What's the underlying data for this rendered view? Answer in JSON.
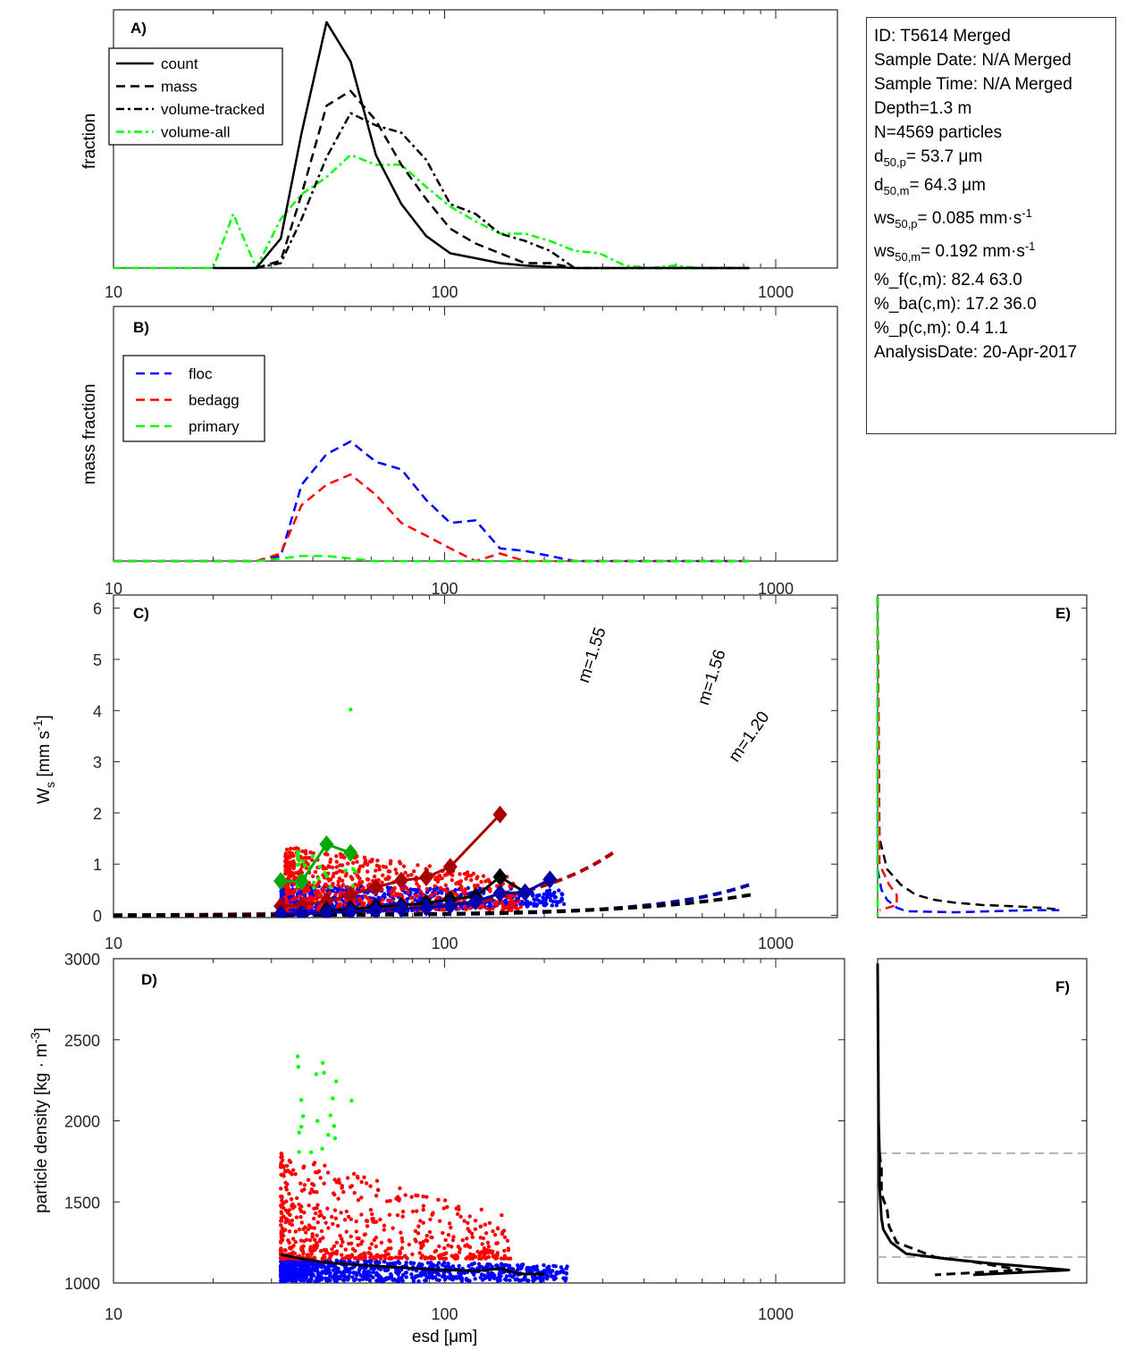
{
  "info_box": {
    "id": "ID: T5614 Merged",
    "sample_date": "Sample Date: N/A Merged",
    "sample_time": "Sample Time: N/A Merged",
    "depth": "Depth=1.3 m",
    "n": "N=4569 particles",
    "d50p_base": "d",
    "d50p_sub": "50,p",
    "d50p_val": "=  53.7 μm",
    "d50m_base": "d",
    "d50m_sub": "50,m",
    "d50m_val": "=  64.3 μm",
    "ws50p_base": "ws",
    "ws50p_sub": "50,p",
    "ws50p_val": "= 0.085 mm·s",
    "ws50p_sup": "-1",
    "ws50m_base": "ws",
    "ws50m_sub": "50,m",
    "ws50m_val": "= 0.192 mm·s",
    "ws50m_sup": "-1",
    "pct_f": "%_f(c,m): 82.4 63.0",
    "pct_ba": "%_ba(c,m): 17.2 36.0",
    "pct_p": "%_p(c,m): 0.4 1.1",
    "analysis_date": "AnalysisDate: 20-Apr-2017"
  },
  "colors": {
    "black": "#000000",
    "green": "#00ff00",
    "blue": "#0000ff",
    "red": "#ff0000",
    "dark_red": "#aa0000",
    "dark_blue": "#0000aa",
    "dark_green": "#00aa00",
    "gray": "#a0a0a0"
  },
  "chart_data": [
    {
      "id": "A",
      "type": "line",
      "panel_label": "A)",
      "xlabel": "",
      "ylabel": "fraction",
      "xscale": "log",
      "xlim": [
        10,
        1500
      ],
      "ylim": [
        0,
        1.05
      ],
      "xticks": [
        10,
        100,
        1000
      ],
      "xtick_labels": [
        "10",
        "100",
        "1000"
      ],
      "legend_position": "top-left",
      "series": [
        {
          "name": "count",
          "style": "solid",
          "color": "#000000",
          "x": [
            20,
            27,
            32,
            37,
            44,
            52,
            62,
            74,
            88,
            104,
            124,
            147,
            175,
            208,
            247,
            294,
            350,
            416,
            494,
            588,
            700,
            832
          ],
          "y": [
            0,
            0,
            0.12,
            0.55,
            1.0,
            0.84,
            0.46,
            0.26,
            0.13,
            0.06,
            0.04,
            0.02,
            0.01,
            0.005,
            0,
            0,
            0,
            0,
            0,
            0,
            0,
            0
          ]
        },
        {
          "name": "mass",
          "style": "dash",
          "color": "#000000",
          "x": [
            27,
            32,
            37,
            44,
            52,
            62,
            74,
            88,
            104,
            124,
            147,
            175,
            208,
            247
          ],
          "y": [
            0,
            0.03,
            0.3,
            0.66,
            0.72,
            0.6,
            0.42,
            0.28,
            0.16,
            0.1,
            0.06,
            0.02,
            0.02,
            0
          ]
        },
        {
          "name": "volume-tracked",
          "style": "dashdot",
          "color": "#000000",
          "x": [
            27,
            32,
            37,
            44,
            52,
            62,
            74,
            88,
            104,
            124,
            147,
            175,
            208,
            247,
            294,
            350,
            416,
            494,
            588,
            700,
            832
          ],
          "y": [
            0,
            0.02,
            0.2,
            0.45,
            0.63,
            0.58,
            0.55,
            0.44,
            0.26,
            0.22,
            0.14,
            0.11,
            0.07,
            0,
            0,
            0,
            0,
            0,
            0,
            0,
            0
          ]
        },
        {
          "name": "volume-all",
          "style": "dashdot",
          "color": "#00ff00",
          "x": [
            10,
            20,
            23,
            27,
            32,
            37,
            44,
            52,
            62,
            74,
            88,
            104,
            124,
            147,
            175,
            208,
            247,
            294,
            350,
            416,
            494,
            588,
            700,
            832
          ],
          "y": [
            0,
            0,
            0.22,
            0,
            0.2,
            0.3,
            0.37,
            0.46,
            0.42,
            0.42,
            0.33,
            0.25,
            0.19,
            0.14,
            0.14,
            0.11,
            0.07,
            0.06,
            0.01,
            0,
            0.01,
            0,
            0,
            0
          ]
        }
      ]
    },
    {
      "id": "B",
      "type": "line",
      "panel_label": "B)",
      "xlabel": "",
      "ylabel": "mass fraction",
      "xscale": "log",
      "xlim": [
        10,
        1500
      ],
      "ylim": [
        0,
        1.0
      ],
      "xticks": [
        10,
        100,
        1000
      ],
      "xtick_labels": [
        "10",
        "100",
        "1000"
      ],
      "legend_position": "top-left",
      "series": [
        {
          "name": "floc",
          "style": "dash",
          "color": "#0000ff",
          "x": [
            10,
            27,
            32,
            37,
            44,
            52,
            62,
            74,
            88,
            104,
            124,
            147,
            175,
            208,
            247,
            294,
            350,
            416,
            494,
            588,
            700,
            832
          ],
          "y": [
            0,
            0,
            0.02,
            0.3,
            0.42,
            0.47,
            0.39,
            0.36,
            0.24,
            0.15,
            0.16,
            0.05,
            0.04,
            0.02,
            0,
            0,
            0,
            0,
            0,
            0,
            0,
            0
          ]
        },
        {
          "name": "bedagg",
          "style": "dash",
          "color": "#ff0000",
          "x": [
            10,
            27,
            32,
            37,
            44,
            52,
            62,
            74,
            88,
            104,
            124,
            147,
            175,
            208,
            247,
            294,
            350,
            416,
            494,
            588,
            700,
            832
          ],
          "y": [
            0,
            0,
            0.03,
            0.22,
            0.3,
            0.34,
            0.26,
            0.15,
            0.1,
            0.05,
            0,
            0.03,
            0,
            0,
            0,
            0,
            0,
            0,
            0,
            0,
            0,
            0
          ]
        },
        {
          "name": "primary",
          "style": "dash",
          "color": "#00ff00",
          "x": [
            10,
            27,
            32,
            37,
            44,
            52,
            62,
            74,
            88,
            104,
            124,
            147,
            175,
            208,
            247,
            294,
            350,
            416,
            494,
            588,
            700,
            832
          ],
          "y": [
            0,
            0,
            0.01,
            0.02,
            0.02,
            0.01,
            0,
            0,
            0,
            0,
            0,
            0,
            0,
            0,
            0,
            0,
            0,
            0,
            0,
            0,
            0,
            0
          ]
        }
      ]
    },
    {
      "id": "C",
      "type": "scatter",
      "panel_label": "C)",
      "xlabel": "",
      "ylabel_base": "W",
      "ylabel_sub": "s",
      "ylabel_unit": " [mm s",
      "ylabel_sup": "-1",
      "ylabel_end": "]",
      "xscale": "log",
      "xlim": [
        10,
        1500
      ],
      "ylim": [
        -0.05,
        6.25
      ],
      "xticks": [
        10,
        100,
        1000
      ],
      "xtick_labels": [
        "10",
        "100",
        "1000"
      ],
      "yticks": [
        0,
        1,
        2,
        3,
        4,
        5,
        6
      ],
      "ytick_labels": [
        "0",
        "1",
        "2",
        "3",
        "4",
        "5",
        "6"
      ],
      "fits": [
        {
          "name": "bedagg-fit",
          "label": "m=1.55",
          "color": "#aa0000",
          "m": 1.55,
          "a": 0.000158,
          "x_end": 330
        },
        {
          "name": "floc-fit",
          "label": "m=1.56",
          "color": "#0000aa",
          "m": 1.56,
          "a": 1.66e-05,
          "x_end": 870
        },
        {
          "name": "all-fit",
          "label": "m=1.20",
          "color": "#000000",
          "m": 1.2,
          "a": 0.000124,
          "x_end": 880
        }
      ],
      "binned_means": [
        {
          "name": "primary",
          "color": "#00aa00",
          "x": [
            32,
            37,
            44,
            52
          ],
          "y": [
            0.67,
            0.66,
            1.39,
            1.22
          ]
        },
        {
          "name": "bedagg",
          "color": "#aa0000",
          "x": [
            32,
            37,
            44,
            52,
            62,
            74,
            88,
            104,
            147
          ],
          "y": [
            0.18,
            0.2,
            0.28,
            0.4,
            0.55,
            0.68,
            0.74,
            0.95,
            1.97
          ]
        },
        {
          "name": "all",
          "color": "#000000",
          "x": [
            44,
            52,
            62,
            74,
            88,
            104,
            124,
            147,
            175,
            208
          ],
          "y": [
            0.1,
            0.12,
            0.17,
            0.19,
            0.24,
            0.31,
            0.37,
            0.75,
            0.45,
            0.7
          ]
        },
        {
          "name": "floc",
          "color": "#0000aa",
          "x": [
            32,
            37,
            44,
            52,
            62,
            74,
            88,
            104,
            124,
            147,
            175,
            208
          ],
          "y": [
            0.03,
            0.03,
            0.05,
            0.07,
            0.1,
            0.13,
            0.15,
            0.19,
            0.27,
            0.43,
            0.45,
            0.7
          ]
        }
      ],
      "scatter_groups": [
        {
          "name": "floc",
          "color": "#0000ff",
          "count_shown": 900,
          "x_range": [
            32,
            230
          ],
          "y_range": [
            0,
            0.6
          ]
        },
        {
          "name": "bedagg",
          "color": "#ff0000",
          "count_shown": 600,
          "x_range": [
            33,
            170
          ],
          "y_range": [
            0.1,
            1.35
          ]
        },
        {
          "name": "primary",
          "color": "#00ff00",
          "count_shown": 25,
          "x_range": [
            36,
            56
          ],
          "y_range": [
            0.5,
            1.3
          ],
          "outlier": {
            "x": 52,
            "y": 4.02
          }
        }
      ]
    },
    {
      "id": "D",
      "type": "scatter",
      "panel_label": "D)",
      "xlabel": "esd [μm]",
      "ylabel": "particle density [kg · m",
      "ylabel_sup": "-3",
      "ylabel_end": "]",
      "xscale": "log",
      "xlim": [
        10,
        1500
      ],
      "ylim": [
        1000,
        3000
      ],
      "xticks": [
        10,
        100,
        1000
      ],
      "xtick_labels": [
        "10",
        "100",
        "1000"
      ],
      "yticks": [
        1000,
        1500,
        2000,
        2500,
        3000
      ],
      "ytick_labels": [
        "1000",
        "1500",
        "2000",
        "2500",
        "3000"
      ],
      "mean_line": {
        "name": "mean-density",
        "color": "#000000",
        "x": [
          32,
          37,
          44,
          52,
          62,
          74,
          88,
          104,
          124,
          133,
          147,
          165,
          175,
          200
        ],
        "y": [
          1175,
          1150,
          1125,
          1115,
          1105,
          1095,
          1085,
          1080,
          1075,
          1080,
          1090,
          1060,
          1055,
          1055
        ]
      },
      "scatter_groups": [
        {
          "name": "floc",
          "color": "#0000ff",
          "count_shown": 900,
          "x_range": [
            32,
            235
          ],
          "y_range": [
            1010,
            1150
          ]
        },
        {
          "name": "bedagg",
          "color": "#ff0000",
          "count_shown": 600,
          "x_range": [
            32,
            160
          ],
          "y_range": [
            1150,
            1800
          ]
        },
        {
          "name": "primary",
          "color": "#00ff00",
          "count_shown": 20,
          "x_range": [
            36,
            56
          ],
          "y_range": [
            1800,
            2440
          ]
        }
      ]
    },
    {
      "id": "E",
      "type": "line",
      "panel_label": "E)",
      "ylim": [
        -0.05,
        6.25
      ],
      "orientation": "horizontal-distribution",
      "series": [
        {
          "name": "all",
          "style": "dash",
          "color": "#000000",
          "ws": [
            6.2,
            1.5,
            0.9,
            0.6,
            0.4,
            0.3,
            0.25,
            0.2,
            0.18,
            0.15,
            0.12
          ],
          "frac": [
            0,
            0.01,
            0.05,
            0.12,
            0.2,
            0.3,
            0.4,
            0.55,
            0.7,
            0.85,
            0.93
          ]
        },
        {
          "name": "floc",
          "style": "dash",
          "color": "#0000ff",
          "ws": [
            6.2,
            0.9,
            0.5,
            0.3,
            0.15,
            0.08,
            0.06,
            0.08,
            0.1,
            0.1
          ],
          "frac": [
            0,
            0,
            0.02,
            0.05,
            0.1,
            0.15,
            0.4,
            0.6,
            0.8,
            0.95
          ]
        },
        {
          "name": "bedagg",
          "style": "dash",
          "color": "#ff0000",
          "ws": [
            6.2,
            1.0,
            0.6,
            0.4,
            0.2,
            0.1
          ],
          "frac": [
            0,
            0.01,
            0.06,
            0.1,
            0.1,
            0.01
          ]
        },
        {
          "name": "primary",
          "style": "dash",
          "color": "#00ff00",
          "ws": [
            6.2,
            0.0
          ],
          "frac": [
            0,
            0
          ]
        }
      ]
    },
    {
      "id": "F",
      "type": "line",
      "panel_label": "F)",
      "ylim": [
        1000,
        3000
      ],
      "orientation": "horizontal-distribution",
      "reference_lines": [
        1160,
        1800
      ],
      "series": [
        {
          "name": "count",
          "style": "solid",
          "color": "#000000",
          "rho": [
            2970,
            2000,
            1800,
            1600,
            1500,
            1400,
            1330,
            1250,
            1180,
            1150,
            1120,
            1080,
            1050
          ],
          "frac": [
            0,
            0.005,
            0.01,
            0.01,
            0.015,
            0.02,
            0.03,
            0.07,
            0.15,
            0.35,
            0.6,
            1.0,
            0.5
          ]
        },
        {
          "name": "mass",
          "style": "dash",
          "color": "#000000",
          "rho": [
            1800,
            1700,
            1550,
            1450,
            1350,
            1250,
            1160,
            1130,
            1080,
            1060,
            1050
          ],
          "frac": [
            0.01,
            0.02,
            0.02,
            0.05,
            0.06,
            0.1,
            0.3,
            0.5,
            0.75,
            0.45,
            0.3
          ]
        }
      ]
    }
  ]
}
